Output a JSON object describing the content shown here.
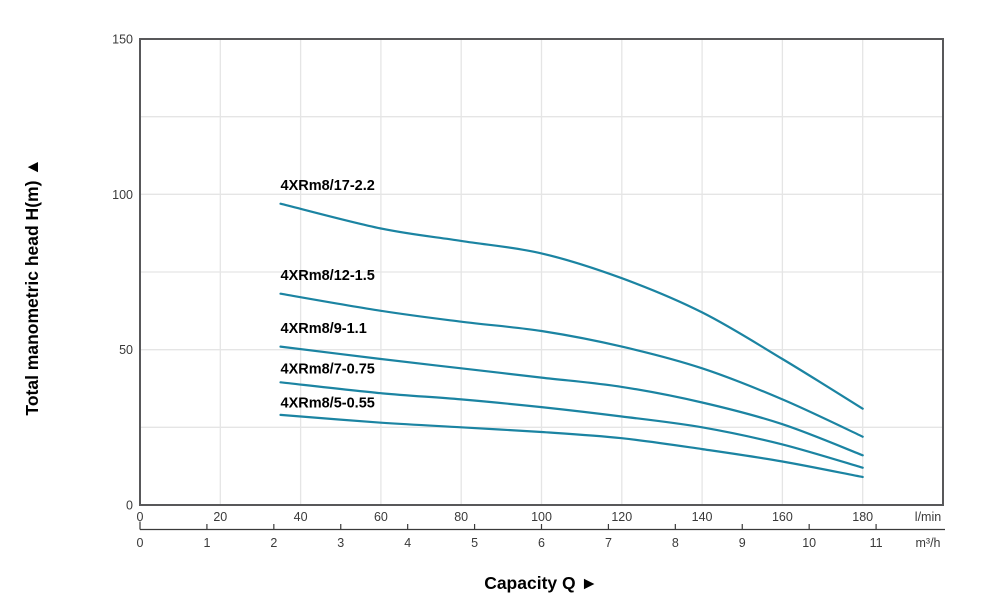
{
  "chart_data": {
    "type": "line",
    "title": "",
    "xlabel": "Capacity Q",
    "xlabel_arrow": "►",
    "ylabel": "Total manometric head H(m)",
    "ylabel_arrow": "▲",
    "x_axis_primary": {
      "unit": "l/min",
      "range": [
        0,
        200
      ],
      "tick_labels": [
        0,
        20,
        40,
        60,
        80,
        100,
        120,
        140,
        160,
        180
      ],
      "gridline_step": 20
    },
    "x_axis_secondary": {
      "unit": "m³/h",
      "tick_labels": [
        0,
        1,
        2,
        3,
        4,
        5,
        6,
        7,
        8,
        9,
        10,
        11
      ],
      "lmin_per_unit": 16.6667
    },
    "y_axis": {
      "range": [
        0,
        150
      ],
      "tick_labels": [
        0,
        50,
        100,
        150
      ],
      "gridline_step": 25
    },
    "grid": true,
    "legend_position": "labels-above-curve-start",
    "series": [
      {
        "name": "4XRm8/17-2.2",
        "label_q": 35,
        "label_h": 103,
        "points": [
          [
            35,
            97
          ],
          [
            60,
            89
          ],
          [
            80,
            85
          ],
          [
            100,
            81
          ],
          [
            120,
            73
          ],
          [
            140,
            62
          ],
          [
            160,
            47
          ],
          [
            180,
            31
          ]
        ]
      },
      {
        "name": "4XRm8/12-1.5",
        "label_q": 35,
        "label_h": 74,
        "points": [
          [
            35,
            68
          ],
          [
            60,
            62.5
          ],
          [
            80,
            59
          ],
          [
            100,
            56
          ],
          [
            120,
            51
          ],
          [
            140,
            44
          ],
          [
            160,
            34
          ],
          [
            180,
            22
          ]
        ]
      },
      {
        "name": "4XRm8/9-1.1",
        "label_q": 35,
        "label_h": 57,
        "points": [
          [
            35,
            51
          ],
          [
            60,
            47
          ],
          [
            80,
            44
          ],
          [
            100,
            41
          ],
          [
            120,
            38
          ],
          [
            140,
            33
          ],
          [
            160,
            26
          ],
          [
            180,
            16
          ]
        ]
      },
      {
        "name": "4XRm8/7-0.75",
        "label_q": 35,
        "label_h": 44,
        "points": [
          [
            35,
            39.5
          ],
          [
            60,
            36
          ],
          [
            80,
            34
          ],
          [
            100,
            31.5
          ],
          [
            120,
            28.5
          ],
          [
            140,
            25
          ],
          [
            160,
            19.5
          ],
          [
            180,
            12
          ]
        ]
      },
      {
        "name": "4XRm8/5-0.55",
        "label_q": 35,
        "label_h": 33,
        "points": [
          [
            35,
            29
          ],
          [
            60,
            26.5
          ],
          [
            80,
            25
          ],
          [
            100,
            23.5
          ],
          [
            120,
            21.5
          ],
          [
            140,
            18
          ],
          [
            160,
            14
          ],
          [
            180,
            9
          ]
        ]
      }
    ],
    "colors": {
      "curve": "#1b84a2",
      "frame": "#58585a",
      "gridline": "#e5e5e5",
      "tick_text": "#3a3a3a",
      "label_text": "#000000",
      "secondary_axis": "#3a3a3a",
      "background": "#ffffff"
    }
  }
}
